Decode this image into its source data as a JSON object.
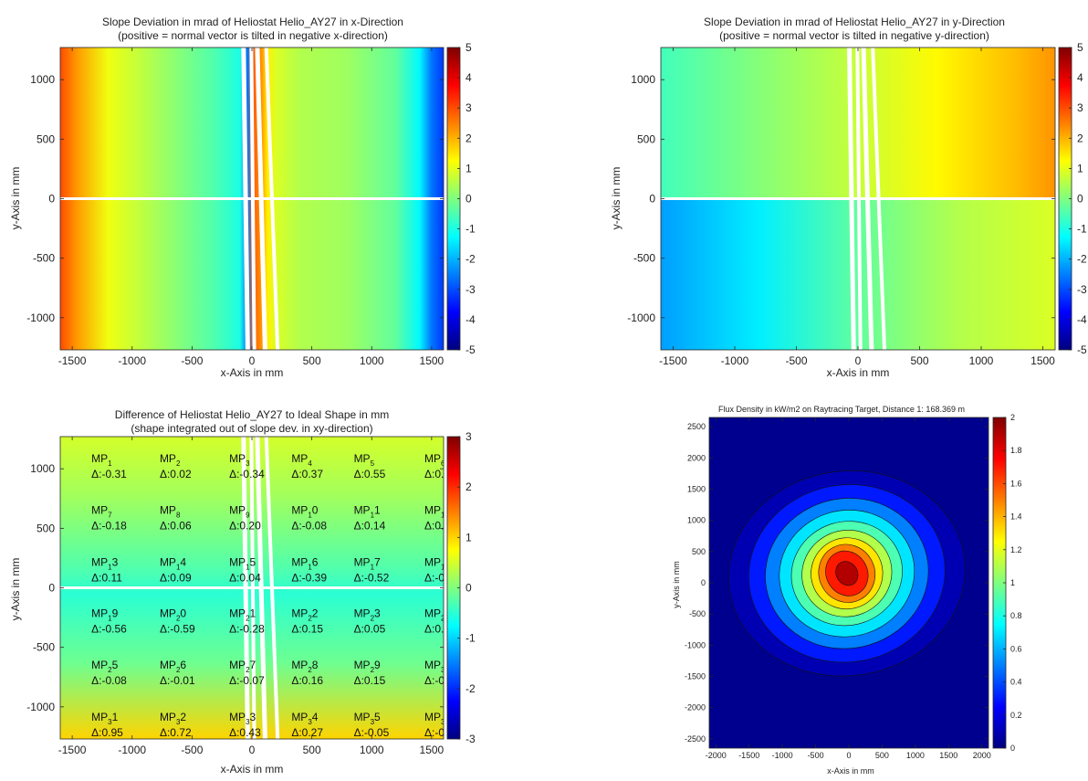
{
  "colors": {
    "jet_stops": [
      "#00007f",
      "#0000ff",
      "#007fff",
      "#00ffff",
      "#7fff7f",
      "#ffff00",
      "#ff7f00",
      "#ff0000",
      "#7f0000"
    ],
    "background": "#ffffff",
    "flux_bg": "#00008f"
  },
  "chart_data": [
    {
      "type": "heatmap",
      "title": "Slope Deviation in mrad of Heliostat Helio_AY27 in x-Direction",
      "subtitle": "(positive = normal vector is tilted in negative x-direction)",
      "xlabel": "x-Axis in mm",
      "ylabel": "y-Axis in mm",
      "xlim": [
        -1600,
        1600
      ],
      "ylim": [
        -1270,
        1270
      ],
      "xticks": [
        -1500,
        -1000,
        -500,
        0,
        500,
        1000,
        1500
      ],
      "yticks": [
        -1000,
        -500,
        0,
        500,
        1000
      ],
      "xtick_labels": [
        "-1500",
        "-1000",
        "-500",
        "0",
        "500",
        "1000",
        "1500"
      ],
      "ytick_labels": [
        "-1000",
        "-500",
        "0",
        "500",
        "1000"
      ],
      "colorbar": {
        "min": -5,
        "max": 5,
        "ticks": [
          -5,
          -4,
          -3,
          -2,
          -1,
          0,
          1,
          2,
          3,
          4,
          5
        ],
        "labels": [
          "-5",
          "-4",
          "-3",
          "-2",
          "-1",
          "0",
          "1",
          "2",
          "3",
          "4",
          "5"
        ]
      },
      "field_profile": {
        "x": [
          -1600,
          -1450,
          -1200,
          -800,
          -300,
          -100,
          -40,
          20,
          80,
          130,
          200,
          400,
          800,
          1200,
          1400,
          1500,
          1600
        ],
        "value": [
          3.0,
          2.2,
          1.1,
          0.4,
          -0.5,
          -1.0,
          -2.6,
          2.8,
          2.3,
          1.4,
          0.9,
          0.5,
          0.3,
          -0.3,
          -1.3,
          -2.6,
          -3.2
        ]
      }
    },
    {
      "type": "heatmap",
      "title": "Slope Deviation in mrad of Heliostat Helio_AY27 in y-Direction",
      "subtitle": "(positive = normal vector is tilted in negative y-direction)",
      "xlabel": "x-Axis in mm",
      "ylabel": "y-Axis in mm",
      "xlim": [
        -1600,
        1600
      ],
      "ylim": [
        -1270,
        1270
      ],
      "xticks": [
        -1500,
        -1000,
        -500,
        0,
        500,
        1000,
        1500
      ],
      "yticks": [
        -1000,
        -500,
        0,
        500,
        1000
      ],
      "xtick_labels": [
        "-1500",
        "-1000",
        "-500",
        "0",
        "500",
        "1000",
        "1500"
      ],
      "ytick_labels": [
        "-1000",
        "-500",
        "0",
        "500",
        "1000"
      ],
      "colorbar": {
        "min": -5,
        "max": 5,
        "ticks": [
          -5,
          -4,
          -3,
          -2,
          -1,
          0,
          1,
          2,
          3,
          4,
          5
        ],
        "labels": [
          "-5",
          "-4",
          "-3",
          "-2",
          "-1",
          "0",
          "1",
          "2",
          "3",
          "4",
          "5"
        ]
      }
    },
    {
      "type": "heatmap",
      "title": "Difference of Heliostat Helio_AY27 to Ideal Shape in mm",
      "subtitle": "(shape integrated out of slope dev. in xy-direction)",
      "xlabel": "x-Axis in mm",
      "ylabel": "y-Axis in mm",
      "xlim": [
        -1600,
        1600
      ],
      "ylim": [
        -1270,
        1270
      ],
      "xticks": [
        -1500,
        -1000,
        -500,
        0,
        500,
        1000,
        1500
      ],
      "yticks": [
        -1000,
        -500,
        0,
        500,
        1000
      ],
      "xtick_labels": [
        "-1500",
        "-1000",
        "-500",
        "0",
        "500",
        "1000",
        "1500"
      ],
      "ytick_labels": [
        "-1000",
        "-500",
        "0",
        "500",
        "1000"
      ],
      "colorbar": {
        "min": -3,
        "max": 3,
        "ticks": [
          -3,
          -2,
          -1,
          0,
          1,
          2,
          3
        ],
        "labels": [
          "-3",
          "-2",
          "-1",
          "0",
          "1",
          "2",
          "3"
        ]
      },
      "measurement_points": [
        {
          "x": -1340,
          "y": 1055,
          "base": "MP",
          "sub": "1",
          "tail": "",
          "delta": "Δ:-0.31"
        },
        {
          "x": -770,
          "y": 1055,
          "base": "MP",
          "sub": "2",
          "tail": "",
          "delta": "Δ:0.02"
        },
        {
          "x": -190,
          "y": 1055,
          "base": "MP",
          "sub": "3",
          "tail": "",
          "delta": "Δ:-0.34"
        },
        {
          "x": 330,
          "y": 1055,
          "base": "MP",
          "sub": "4",
          "tail": "",
          "delta": "Δ:0.37"
        },
        {
          "x": 850,
          "y": 1055,
          "base": "MP",
          "sub": "5",
          "tail": "",
          "delta": "Δ:0.55"
        },
        {
          "x": 1440,
          "y": 1055,
          "base": "MP",
          "sub": "6",
          "tail": "",
          "delta": "Δ:0.7"
        },
        {
          "x": -1340,
          "y": 620,
          "base": "MP",
          "sub": "7",
          "tail": "",
          "delta": "Δ:-0.18"
        },
        {
          "x": -770,
          "y": 620,
          "base": "MP",
          "sub": "8",
          "tail": "",
          "delta": "Δ:0.06"
        },
        {
          "x": -190,
          "y": 620,
          "base": "MP",
          "sub": "9",
          "tail": "",
          "delta": "Δ:0.20"
        },
        {
          "x": 330,
          "y": 620,
          "base": "MP",
          "sub": "1",
          "tail": "0",
          "delta": "Δ:-0.08"
        },
        {
          "x": 850,
          "y": 620,
          "base": "MP",
          "sub": "1",
          "tail": "1",
          "delta": "Δ:0.14"
        },
        {
          "x": 1440,
          "y": 620,
          "base": "MP",
          "sub": "1",
          "tail": "2",
          "delta": "Δ:0.0"
        },
        {
          "x": -1340,
          "y": 185,
          "base": "MP",
          "sub": "1",
          "tail": "3",
          "delta": "Δ:0.11"
        },
        {
          "x": -770,
          "y": 185,
          "base": "MP",
          "sub": "1",
          "tail": "4",
          "delta": "Δ:0.09"
        },
        {
          "x": -190,
          "y": 185,
          "base": "MP",
          "sub": "1",
          "tail": "5",
          "delta": "Δ:0.04"
        },
        {
          "x": 330,
          "y": 185,
          "base": "MP",
          "sub": "1",
          "tail": "6",
          "delta": "Δ:-0.39"
        },
        {
          "x": 850,
          "y": 185,
          "base": "MP",
          "sub": "1",
          "tail": "7",
          "delta": "Δ:-0.52"
        },
        {
          "x": 1440,
          "y": 185,
          "base": "MP",
          "sub": "1",
          "tail": "8",
          "delta": "Δ:-0."
        },
        {
          "x": -1340,
          "y": -245,
          "base": "MP",
          "sub": "1",
          "tail": "9",
          "delta": "Δ:-0.56"
        },
        {
          "x": -770,
          "y": -245,
          "base": "MP",
          "sub": "2",
          "tail": "0",
          "delta": "Δ:-0.59"
        },
        {
          "x": -190,
          "y": -245,
          "base": "MP",
          "sub": "2",
          "tail": "1",
          "delta": "Δ:-0.28"
        },
        {
          "x": 330,
          "y": -245,
          "base": "MP",
          "sub": "2",
          "tail": "2",
          "delta": "Δ:0.15"
        },
        {
          "x": 850,
          "y": -245,
          "base": "MP",
          "sub": "2",
          "tail": "3",
          "delta": "Δ:0.05"
        },
        {
          "x": 1440,
          "y": -245,
          "base": "MP",
          "sub": "2",
          "tail": "4",
          "delta": "Δ:0.1"
        },
        {
          "x": -1340,
          "y": -680,
          "base": "MP",
          "sub": "2",
          "tail": "5",
          "delta": "Δ:-0.08"
        },
        {
          "x": -770,
          "y": -680,
          "base": "MP",
          "sub": "2",
          "tail": "6",
          "delta": "Δ:-0.01"
        },
        {
          "x": -190,
          "y": -680,
          "base": "MP",
          "sub": "2",
          "tail": "7",
          "delta": "Δ:-0.07"
        },
        {
          "x": 330,
          "y": -680,
          "base": "MP",
          "sub": "2",
          "tail": "8",
          "delta": "Δ:0.16"
        },
        {
          "x": 850,
          "y": -680,
          "base": "MP",
          "sub": "2",
          "tail": "9",
          "delta": "Δ:0.15"
        },
        {
          "x": 1440,
          "y": -680,
          "base": "MP",
          "sub": "3",
          "tail": "0",
          "delta": "Δ:-0."
        },
        {
          "x": -1340,
          "y": -1115,
          "base": "MP",
          "sub": "3",
          "tail": "1",
          "delta": "Δ:0.95"
        },
        {
          "x": -770,
          "y": -1115,
          "base": "MP",
          "sub": "3",
          "tail": "2",
          "delta": "Δ:0.72"
        },
        {
          "x": -190,
          "y": -1115,
          "base": "MP",
          "sub": "3",
          "tail": "3",
          "delta": "Δ:0.43"
        },
        {
          "x": 330,
          "y": -1115,
          "base": "MP",
          "sub": "3",
          "tail": "4",
          "delta": "Δ:0.27"
        },
        {
          "x": 850,
          "y": -1115,
          "base": "MP",
          "sub": "3",
          "tail": "5",
          "delta": "Δ:-0.05"
        },
        {
          "x": 1440,
          "y": -1115,
          "base": "MP",
          "sub": "3",
          "tail": "6",
          "delta": "Δ:-0."
        }
      ]
    },
    {
      "type": "heatmap",
      "title": "Flux Density in kW/m2 on Raytracing Target, Distance 1: 168.369 m",
      "xlabel": "x-Axis in mm",
      "ylabel": "y-Axis in mm",
      "xlim": [
        -2100,
        2100
      ],
      "ylim": [
        -2650,
        2650
      ],
      "xticks": [
        -2000,
        -1500,
        -1000,
        -500,
        0,
        500,
        1000,
        1500,
        2000
      ],
      "yticks": [
        -2500,
        -2000,
        -1500,
        -1000,
        -500,
        0,
        500,
        1000,
        1500,
        2000,
        2500
      ],
      "xtick_labels": [
        "-2000",
        "-1500",
        "-1000",
        "-500",
        "0",
        "500",
        "1000",
        "1500",
        "2000"
      ],
      "ytick_labels": [
        "-2500",
        "-2000",
        "-1500",
        "-1000",
        "-500",
        "0",
        "500",
        "1000",
        "1500",
        "2000",
        "2500"
      ],
      "colorbar": {
        "min": 0,
        "max": 2,
        "ticks": [
          0,
          0.2,
          0.4,
          0.6,
          0.8,
          1,
          1.2,
          1.4,
          1.6,
          1.8,
          2
        ],
        "labels": [
          "0",
          "0.2",
          "0.4",
          "0.6",
          "0.8",
          "1",
          "1.2",
          "1.4",
          "1.6",
          "1.8",
          "2"
        ]
      },
      "peak": {
        "x": -30,
        "y": 150,
        "value": 1.95
      },
      "contour_levels": [
        0.2,
        0.4,
        0.6,
        0.8,
        1.0,
        1.2,
        1.4,
        1.6,
        1.8
      ]
    }
  ]
}
